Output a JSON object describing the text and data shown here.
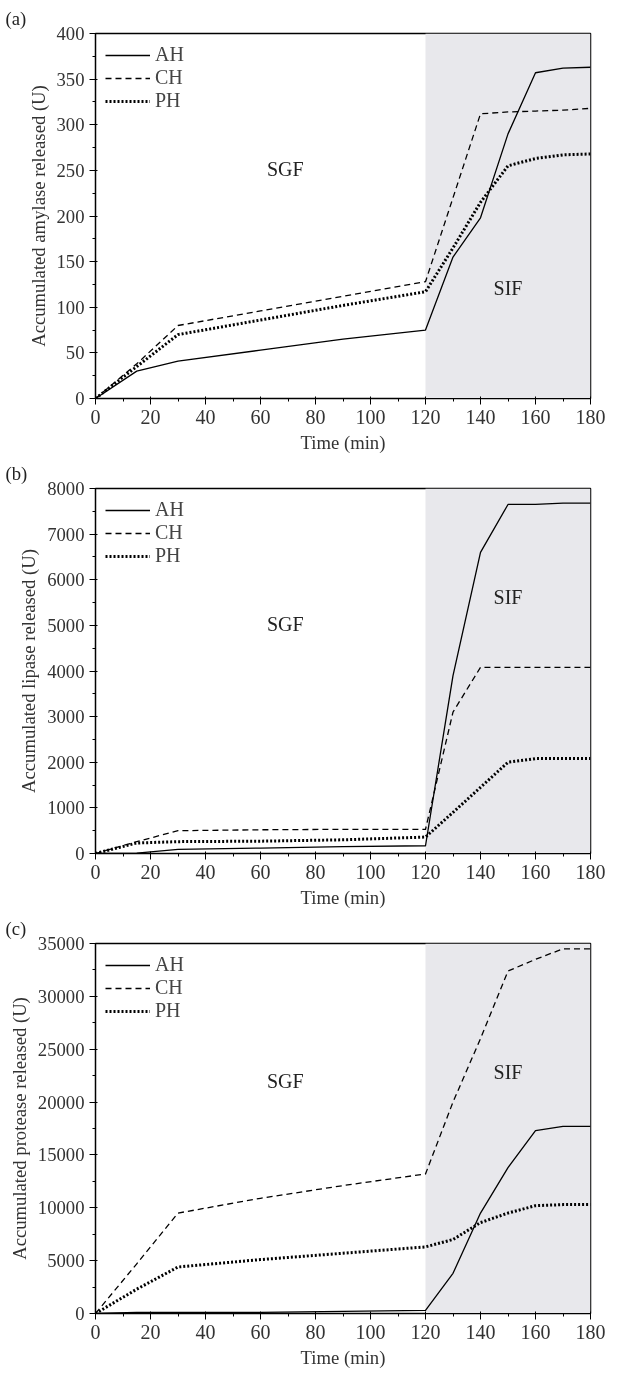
{
  "chart_data": [
    {
      "type": "line",
      "title": "(a)",
      "xlabel": "Time (min)",
      "ylabel": "Accumulated amylase released (U)",
      "x": [
        0,
        15,
        30,
        60,
        90,
        120,
        130,
        140,
        150,
        160,
        170,
        180
      ],
      "series": [
        {
          "name": "AH",
          "color": "#000000",
          "line_style": "solid",
          "values": [
            0,
            30,
            41,
            53,
            65,
            75,
            155,
            198,
            290,
            357,
            362,
            363
          ]
        },
        {
          "name": "CH",
          "color": "#000000",
          "line_style": "dashed",
          "values": [
            0,
            38,
            80,
            96,
            112,
            128,
            220,
            312,
            314,
            315,
            316,
            318
          ]
        },
        {
          "name": "PH",
          "color": "#000000",
          "line_style": "dotted",
          "values": [
            0,
            35,
            70,
            86,
            102,
            117,
            165,
            215,
            255,
            263,
            267,
            268
          ]
        }
      ],
      "xlim": [
        0,
        180
      ],
      "xticks": [
        0,
        20,
        40,
        60,
        80,
        100,
        120,
        140,
        160,
        180
      ],
      "ylim": [
        0,
        400
      ],
      "yticks": [
        0,
        50,
        100,
        150,
        200,
        250,
        300,
        350,
        400
      ],
      "bands": [
        {
          "axis": "x",
          "from": 120,
          "to": 180,
          "label": "SIF",
          "color": "#e8e8ec"
        }
      ],
      "annotations": [
        "SGF"
      ],
      "grid": false,
      "legend": "top left"
    },
    {
      "type": "line",
      "title": "(b)",
      "xlabel": "Time (min)",
      "ylabel": "Accumulated lipase released (U)",
      "x": [
        0,
        15,
        30,
        60,
        90,
        120,
        130,
        140,
        150,
        160,
        170,
        180
      ],
      "series": [
        {
          "name": "AH",
          "color": "#000000",
          "line_style": "solid",
          "values": [
            0,
            10,
            90,
            120,
            150,
            170,
            3900,
            6600,
            7650,
            7650,
            7680,
            7680
          ]
        },
        {
          "name": "CH",
          "color": "#000000",
          "line_style": "dashed",
          "values": [
            0,
            260,
            500,
            520,
            530,
            530,
            3100,
            4080,
            4080,
            4080,
            4080,
            4080
          ]
        },
        {
          "name": "PH",
          "color": "#000000",
          "line_style": "dotted",
          "values": [
            0,
            230,
            260,
            270,
            300,
            360,
            900,
            1450,
            2000,
            2080,
            2080,
            2080
          ]
        }
      ],
      "xlim": [
        0,
        180
      ],
      "xticks": [
        0,
        20,
        40,
        60,
        80,
        100,
        120,
        140,
        160,
        180
      ],
      "ylim": [
        0,
        8000
      ],
      "yticks": [
        0,
        1000,
        2000,
        3000,
        4000,
        5000,
        6000,
        7000,
        8000
      ],
      "bands": [
        {
          "axis": "x",
          "from": 120,
          "to": 180,
          "label": "SIF",
          "color": "#e8e8ec"
        }
      ],
      "annotations": [
        "SGF"
      ],
      "grid": false,
      "legend": "top left"
    },
    {
      "type": "line",
      "title": "(c)",
      "xlabel": "Time (min)",
      "ylabel": "Accumulated protease released (U)",
      "x": [
        0,
        15,
        30,
        60,
        90,
        120,
        130,
        140,
        150,
        160,
        170,
        180
      ],
      "series": [
        {
          "name": "AH",
          "color": "#000000",
          "line_style": "solid",
          "values": [
            0,
            100,
            100,
            100,
            200,
            300,
            3800,
            9500,
            13800,
            17300,
            17700,
            17700
          ]
        },
        {
          "name": "CH",
          "color": "#000000",
          "line_style": "dashed",
          "values": [
            0,
            4700,
            9500,
            10900,
            12100,
            13200,
            20000,
            26000,
            32400,
            33500,
            34500,
            34500
          ]
        },
        {
          "name": "PH",
          "color": "#000000",
          "line_style": "dotted",
          "values": [
            0,
            2300,
            4400,
            5100,
            5700,
            6300,
            7000,
            8600,
            9500,
            10200,
            10300,
            10300
          ]
        }
      ],
      "xlim": [
        0,
        180
      ],
      "xticks": [
        0,
        20,
        40,
        60,
        80,
        100,
        120,
        140,
        160,
        180
      ],
      "ylim": [
        0,
        35000
      ],
      "yticks": [
        0,
        5000,
        10000,
        15000,
        20000,
        25000,
        30000,
        35000
      ],
      "bands": [
        {
          "axis": "x",
          "from": 120,
          "to": 180,
          "label": "SIF",
          "color": "#e8e8ec"
        }
      ],
      "annotations": [
        "SGF"
      ],
      "grid": false,
      "legend": "top left"
    }
  ]
}
